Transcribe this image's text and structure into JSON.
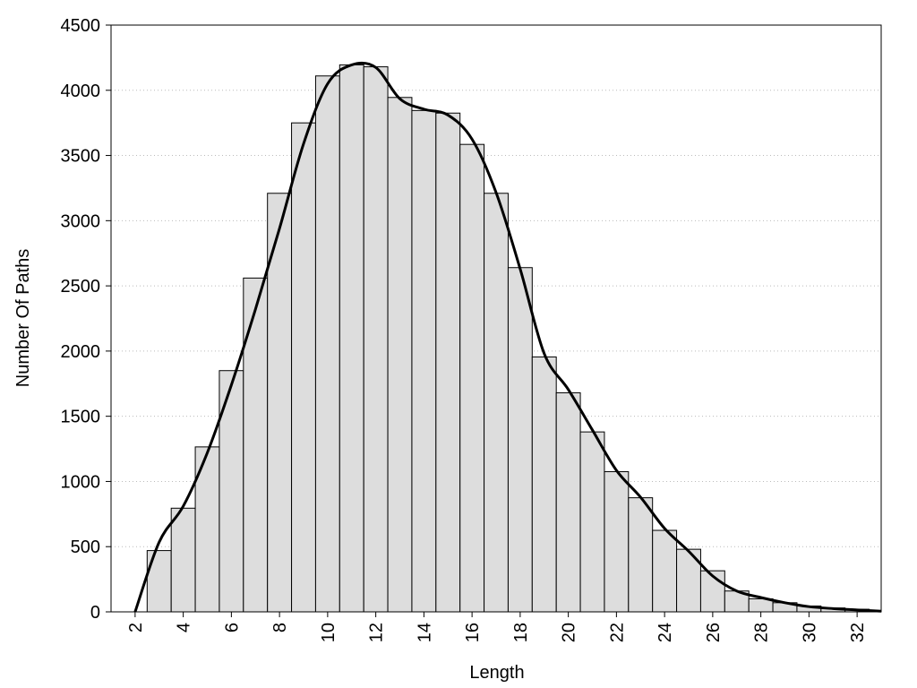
{
  "chart_data": {
    "type": "histogram",
    "x_label": "Length",
    "y_label": "Number Of Paths",
    "bins": [
      2.5,
      3.5,
      4.5,
      5.5,
      6.5,
      7.5,
      8.5,
      9.5,
      10.5,
      11.5,
      12.5,
      13.5,
      14.5,
      15.5,
      16.5,
      17.5,
      18.5,
      19.5,
      20.5,
      21.5,
      22.5,
      23.5,
      24.5,
      25.5,
      26.5,
      27.5,
      28.5,
      29.5,
      30.5,
      31.5,
      32.5
    ],
    "values": [
      470,
      795,
      1265,
      1850,
      2560,
      3210,
      3750,
      4110,
      4195,
      4180,
      3945,
      3845,
      3825,
      3585,
      3210,
      2640,
      1955,
      1680,
      1380,
      1075,
      875,
      625,
      480,
      315,
      160,
      100,
      70,
      45,
      30,
      20
    ],
    "color": "#dddddd",
    "line": {
      "color": "#000000",
      "x": [
        2,
        3,
        4,
        5,
        6,
        7,
        8,
        9,
        10,
        11,
        12,
        13,
        14,
        15,
        16,
        17,
        18,
        19,
        20,
        21,
        22,
        23,
        24,
        25,
        26,
        27,
        28,
        29,
        30,
        31,
        32,
        33
      ],
      "values": [
        0,
        535,
        810,
        1220,
        1740,
        2320,
        2940,
        3590,
        4050,
        4195,
        4175,
        3935,
        3855,
        3810,
        3625,
        3215,
        2630,
        1980,
        1705,
        1395,
        1085,
        880,
        640,
        465,
        275,
        160,
        110,
        70,
        40,
        25,
        15,
        5
      ]
    },
    "xlim": [
      1,
      33
    ],
    "ylim": [
      0,
      4500
    ],
    "xticks": [
      2,
      4,
      6,
      8,
      10,
      12,
      14,
      16,
      18,
      20,
      22,
      24,
      26,
      28,
      30,
      32
    ],
    "yticks": [
      0,
      500,
      1000,
      1500,
      2000,
      2500,
      3000,
      3500,
      4000,
      4500
    ],
    "grid": true
  }
}
